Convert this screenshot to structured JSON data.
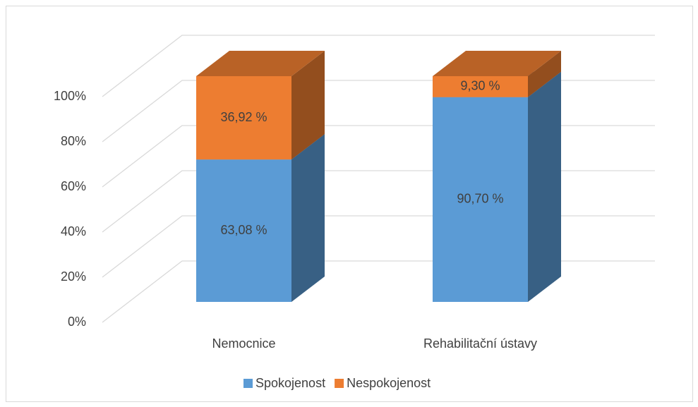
{
  "chart_data": {
    "type": "bar3d_stacked",
    "categories": [
      "Nemocnice",
      "Rehabilitační ústavy"
    ],
    "series": [
      {
        "name": "Spokojenost",
        "color": "#5b9bd5",
        "values": [
          63.08,
          90.7
        ],
        "value_labels": [
          "63,08 %",
          "90,70 %"
        ]
      },
      {
        "name": "Nespokojenost",
        "color": "#ed7d31",
        "values": [
          36.92,
          9.3
        ],
        "value_labels": [
          "36,92 %",
          "9,30 %"
        ]
      }
    ],
    "ylim": [
      0,
      100
    ],
    "yticks": [
      {
        "value": 0,
        "label": "0%"
      },
      {
        "value": 20,
        "label": "20%"
      },
      {
        "value": 40,
        "label": "40%"
      },
      {
        "value": 60,
        "label": "60%"
      },
      {
        "value": 80,
        "label": "80%"
      },
      {
        "value": 100,
        "label": "100%"
      }
    ],
    "grid": true,
    "legend": "bottom"
  }
}
